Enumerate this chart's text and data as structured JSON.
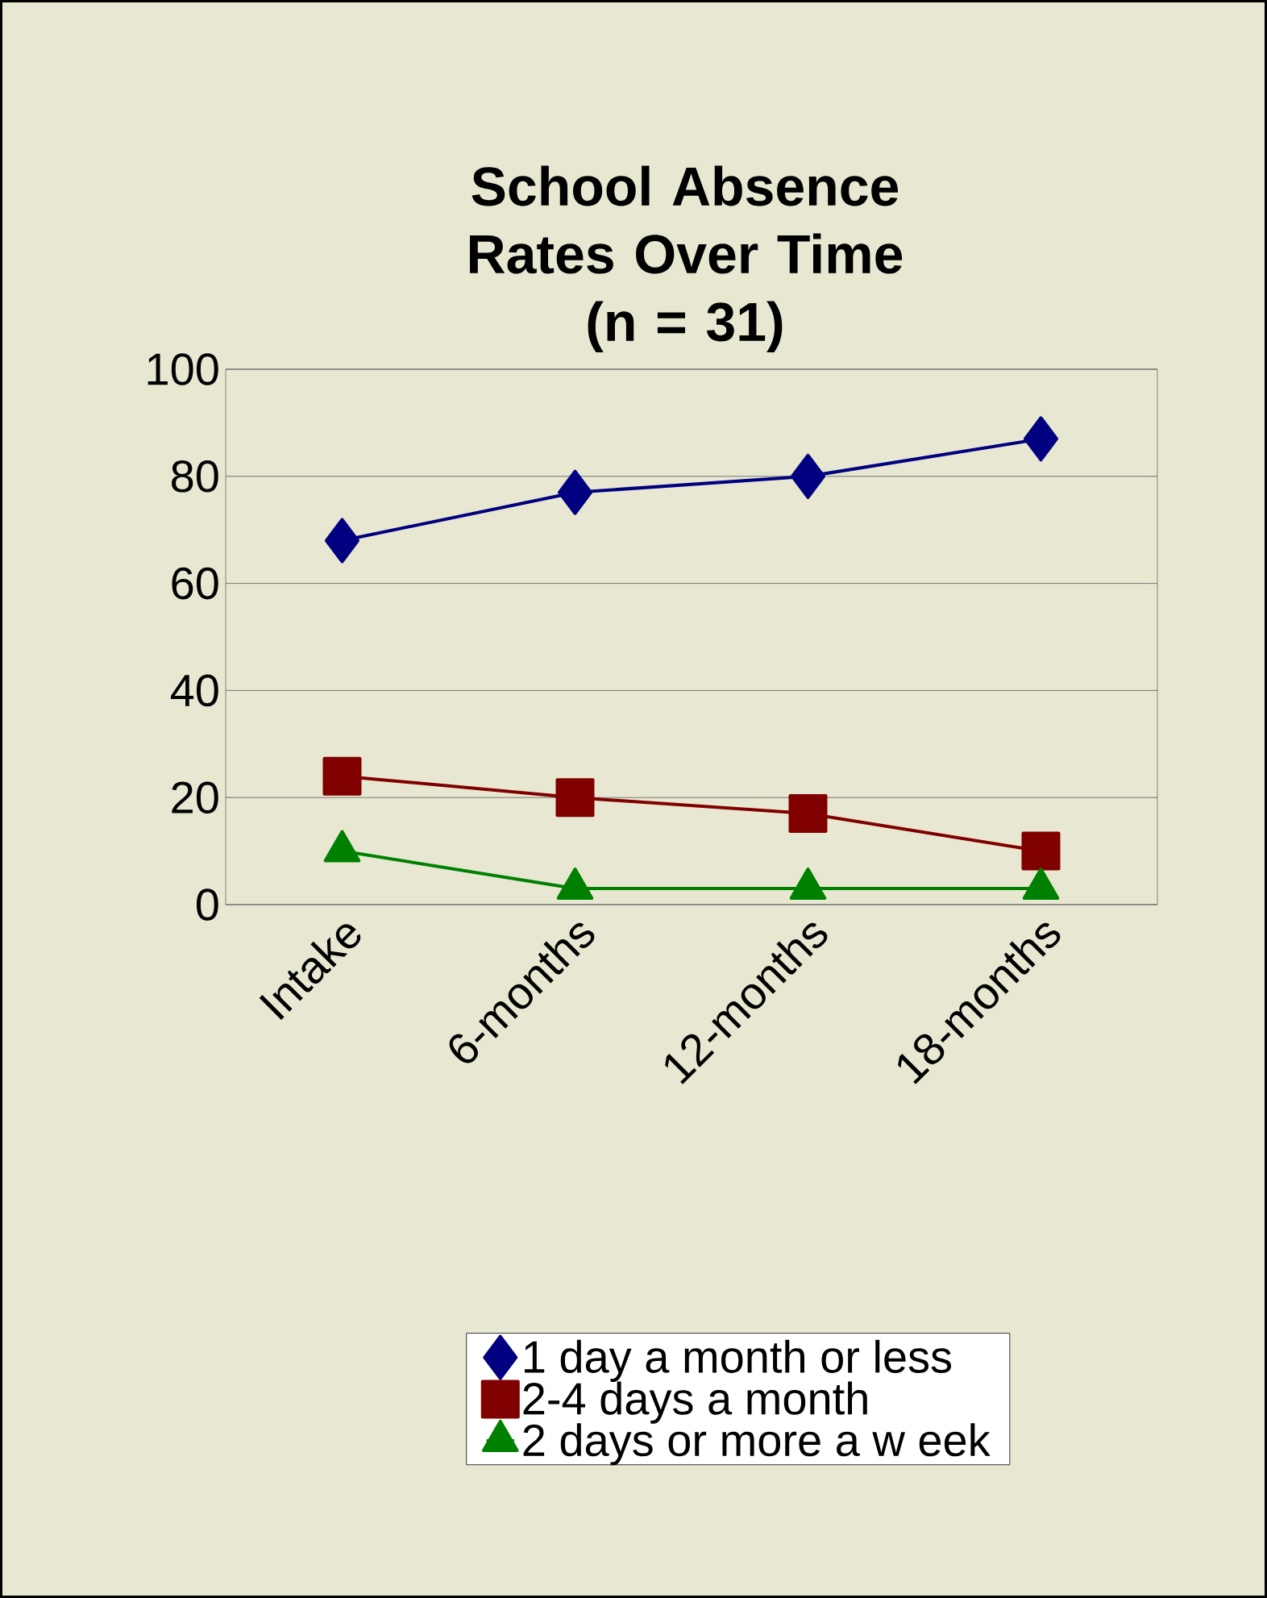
{
  "chart_data": {
    "type": "line",
    "title": "School Absence Rates Over Time",
    "subtitle": "(n = 31)",
    "categories": [
      "Intake",
      "6-months",
      "12-months",
      "18-months"
    ],
    "series": [
      {
        "name": "1 day a month or less",
        "color": "#000080",
        "marker": "diamond",
        "values": [
          68,
          77,
          80,
          87
        ]
      },
      {
        "name": "2-4 days a month",
        "color": "#800000",
        "marker": "square",
        "values": [
          24,
          20,
          17,
          10
        ]
      },
      {
        "name": "2 days or more a w eek",
        "color": "#008000",
        "marker": "triangle",
        "values": [
          10,
          3,
          3,
          3
        ]
      }
    ],
    "ylim": [
      0,
      100
    ],
    "yticks": [
      0,
      20,
      40,
      60,
      80,
      100
    ],
    "grid": "y",
    "legend": "bottom",
    "line_style": "solid"
  }
}
